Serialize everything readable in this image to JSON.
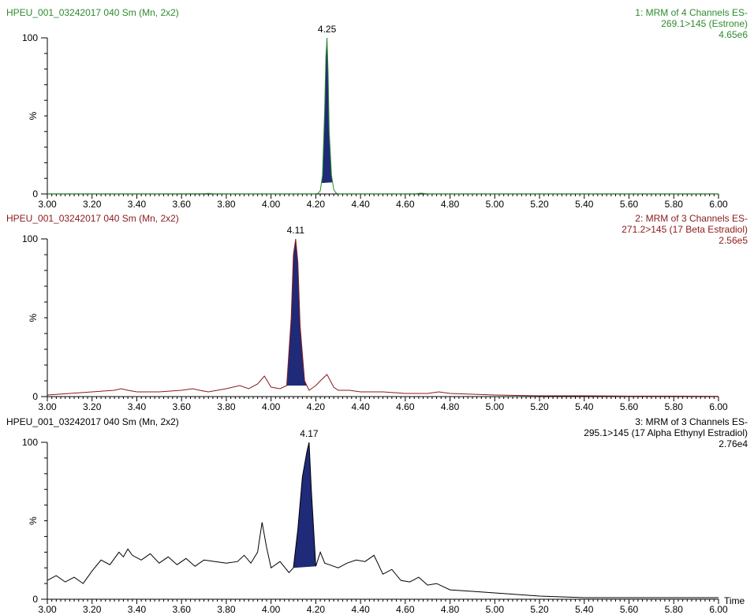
{
  "chart_data": [
    {
      "type": "line",
      "sample_label": "HPEU_001_03242017 040 Sm (Mn, 2x2)",
      "channel_label": "1: MRM of 4 Channels ES-",
      "transition_label": "269.1>145 (Estrone)",
      "intensity_label": "4.65e6",
      "ylabel": "%",
      "xlim": [
        3.0,
        6.0
      ],
      "ylim": [
        0,
        100
      ],
      "y_ticks": [
        "0",
        "100"
      ],
      "x_ticks": [
        "3.00",
        "3.20",
        "3.40",
        "3.60",
        "3.80",
        "4.00",
        "4.20",
        "4.40",
        "4.60",
        "4.80",
        "5.00",
        "5.20",
        "5.40",
        "5.60",
        "5.80",
        "6.00"
      ],
      "peak_label": "4.25",
      "peak_rt": 4.25,
      "peak_fill": [
        4.225,
        4.275
      ],
      "color": "#2e8b2e",
      "x": [
        3.0,
        3.5,
        3.7,
        3.72,
        3.74,
        3.8,
        4.0,
        4.2,
        4.21,
        4.22,
        4.23,
        4.24,
        4.245,
        4.25,
        4.255,
        4.26,
        4.27,
        4.28,
        4.29,
        4.3,
        4.5,
        4.65,
        4.67,
        4.7,
        5.0,
        5.5,
        6.0
      ],
      "y": [
        0.1,
        0.1,
        0.2,
        0.4,
        0.2,
        0.1,
        0.1,
        0.1,
        0.4,
        2,
        12,
        55,
        88,
        100,
        78,
        40,
        12,
        3,
        0.6,
        0.1,
        0.1,
        0.2,
        0.5,
        0.1,
        0.1,
        0.1,
        0.1
      ]
    },
    {
      "type": "line",
      "sample_label": "HPEU_001_03242017 040 Sm (Mn, 2x2)",
      "channel_label": "2: MRM of 3 Channels ES-",
      "transition_label": "271.2>145 (17 Beta Estradiol)",
      "intensity_label": "2.56e5",
      "ylabel": "%",
      "xlim": [
        3.0,
        6.0
      ],
      "ylim": [
        0,
        100
      ],
      "y_ticks": [
        "0",
        "100"
      ],
      "x_ticks": [
        "3.00",
        "3.20",
        "3.40",
        "3.60",
        "3.80",
        "4.00",
        "4.20",
        "4.40",
        "4.60",
        "4.80",
        "5.00",
        "5.20",
        "5.40",
        "5.60",
        "5.80",
        "6.00"
      ],
      "peak_label": "4.11",
      "peak_rt": 4.11,
      "peak_fill": [
        4.07,
        4.16
      ],
      "color": "#8b1a1a",
      "x": [
        3.0,
        3.1,
        3.2,
        3.3,
        3.33,
        3.36,
        3.4,
        3.5,
        3.6,
        3.65,
        3.68,
        3.72,
        3.8,
        3.86,
        3.9,
        3.94,
        3.97,
        4.0,
        4.04,
        4.07,
        4.09,
        4.1,
        4.11,
        4.12,
        4.13,
        4.15,
        4.17,
        4.2,
        4.22,
        4.25,
        4.28,
        4.3,
        4.35,
        4.4,
        4.5,
        4.6,
        4.7,
        4.75,
        4.8,
        5.0,
        5.2,
        5.4,
        5.6,
        5.8,
        6.0
      ],
      "y": [
        1,
        2,
        3,
        4,
        5,
        4,
        3,
        3,
        4,
        5,
        4,
        3,
        5,
        7,
        5,
        8,
        13,
        6,
        5,
        7,
        50,
        90,
        100,
        85,
        45,
        10,
        4,
        7,
        10,
        14,
        6,
        4,
        4,
        3,
        3,
        2,
        2,
        3,
        2,
        1,
        0.5,
        0.5,
        0.3,
        0.3,
        0.2
      ]
    },
    {
      "type": "line",
      "sample_label": "HPEU_001_03242017 040 Sm (Mn, 2x2)",
      "channel_label": "3: MRM of 3 Channels ES-",
      "transition_label": "295.1>145 (17 Alpha Ethynyl Estradiol)",
      "intensity_label": "2.76e4",
      "ylabel": "%",
      "xlabel": "Time",
      "xlim": [
        3.0,
        6.0
      ],
      "ylim": [
        0,
        100
      ],
      "y_ticks": [
        "0",
        "100"
      ],
      "x_ticks": [
        "3.00",
        "3.20",
        "3.40",
        "3.60",
        "3.80",
        "4.00",
        "4.20",
        "4.40",
        "4.60",
        "4.80",
        "5.00",
        "5.20",
        "5.40",
        "5.60",
        "5.80",
        "6.00"
      ],
      "peak_label": "4.17",
      "peak_rt": 4.17,
      "peak_fill": [
        4.1,
        4.2
      ],
      "color": "#000000",
      "x": [
        3.0,
        3.04,
        3.08,
        3.12,
        3.16,
        3.2,
        3.24,
        3.28,
        3.32,
        3.34,
        3.36,
        3.38,
        3.42,
        3.46,
        3.5,
        3.54,
        3.58,
        3.62,
        3.66,
        3.7,
        3.75,
        3.8,
        3.85,
        3.88,
        3.91,
        3.94,
        3.96,
        3.98,
        4.0,
        4.04,
        4.08,
        4.1,
        4.12,
        4.14,
        4.16,
        4.17,
        4.18,
        4.2,
        4.22,
        4.24,
        4.26,
        4.3,
        4.34,
        4.38,
        4.42,
        4.46,
        4.5,
        4.54,
        4.58,
        4.62,
        4.66,
        4.7,
        4.74,
        4.8,
        4.9,
        5.0,
        5.1,
        5.2,
        5.3,
        5.4,
        5.5,
        5.6,
        5.7,
        5.8,
        5.9,
        6.0
      ],
      "y": [
        12,
        15,
        11,
        14,
        10,
        18,
        25,
        22,
        30,
        27,
        32,
        28,
        25,
        29,
        23,
        27,
        22,
        26,
        21,
        25,
        24,
        23,
        24,
        28,
        23,
        30,
        49,
        33,
        20,
        24,
        17,
        20,
        45,
        78,
        94,
        100,
        70,
        21,
        30,
        23,
        22,
        20,
        23,
        25,
        24,
        28,
        16,
        19,
        12,
        11,
        14,
        9,
        10,
        6,
        5,
        4,
        3,
        2,
        1.5,
        1,
        1,
        1,
        1,
        1,
        1,
        1
      ]
    }
  ]
}
